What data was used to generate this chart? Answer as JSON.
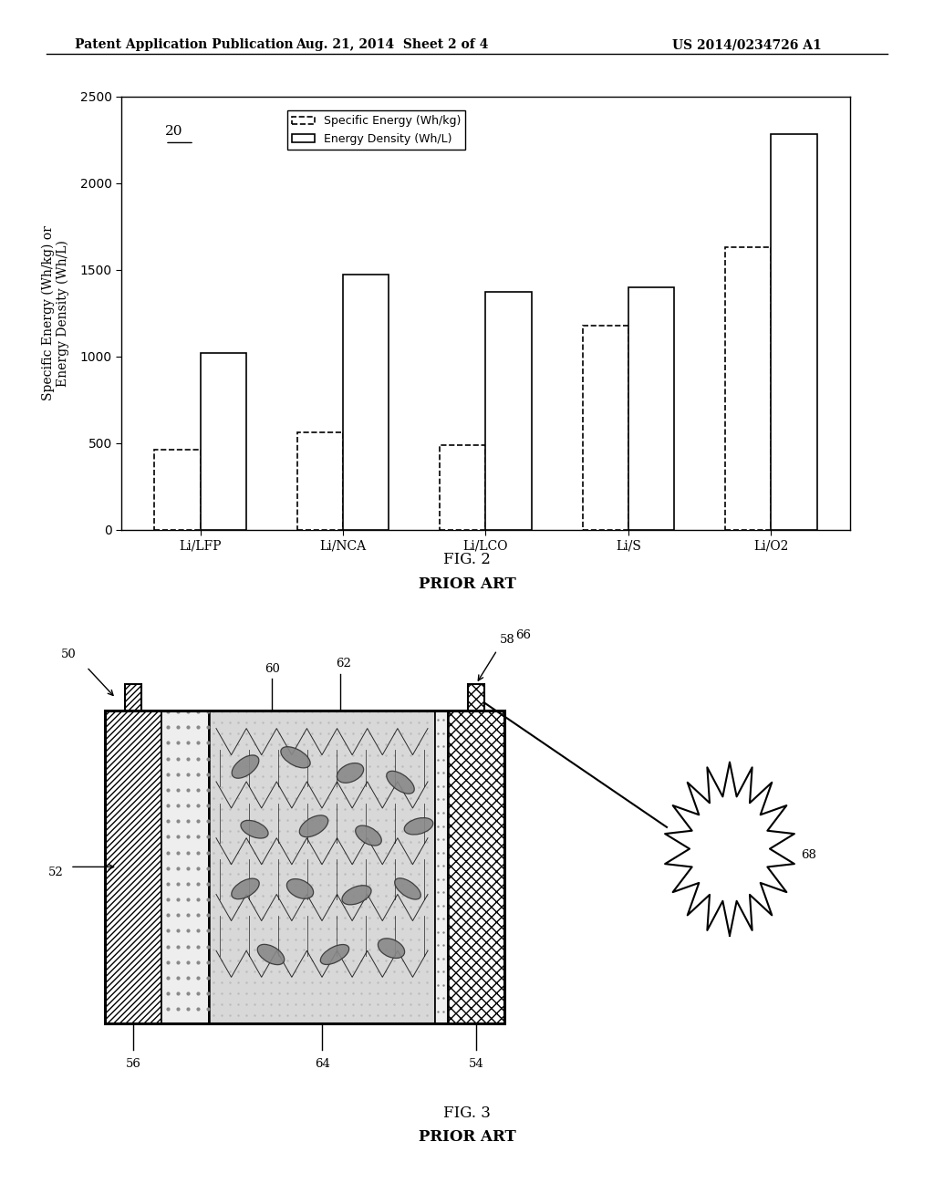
{
  "header_left": "Patent Application Publication",
  "header_mid": "Aug. 21, 2014  Sheet 2 of 4",
  "header_right": "US 2014/0234726 A1",
  "chart_label": "20",
  "categories": [
    "Li/LFP",
    "Li/NCA",
    "Li/LCO",
    "Li/S",
    "Li/O2"
  ],
  "specific_energy": [
    460,
    560,
    490,
    1180,
    1630
  ],
  "energy_density": [
    1020,
    1470,
    1370,
    1400,
    2280
  ],
  "ylabel": "Specific Energy (Wh/kg) or\nEnergy Density (Wh/L)",
  "ylim": [
    0,
    2500
  ],
  "yticks": [
    0,
    500,
    1000,
    1500,
    2000,
    2500
  ],
  "legend_specific": "Specific Energy (Wh/kg)",
  "legend_density": "Energy Density (Wh/L)",
  "fig2_label": "FIG. 2",
  "fig2_sub": "PRIOR ART",
  "fig3_label": "FIG. 3",
  "fig3_sub": "PRIOR ART",
  "label_50": "50",
  "label_52": "52",
  "label_54": "54",
  "label_56": "56",
  "label_58": "58",
  "label_60": "60",
  "label_62": "62",
  "label_64": "64",
  "label_66": "66",
  "label_68": "68",
  "bg_color": "#ffffff",
  "bar_color": "#ffffff",
  "bar_edge": "#000000"
}
